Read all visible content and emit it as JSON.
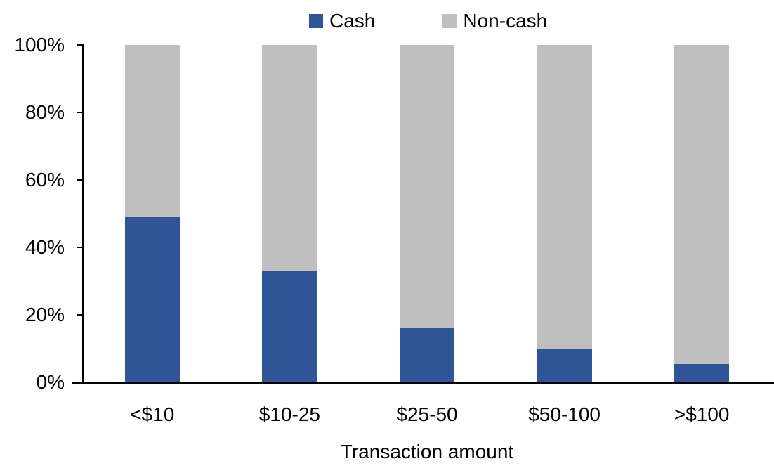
{
  "chart_data": {
    "type": "bar",
    "stacked": true,
    "percent_stacked": true,
    "title": "",
    "xlabel": "Transaction amount",
    "ylabel": "",
    "categories": [
      "<$10",
      "$10-25",
      "$25-50",
      "$50-100",
      ">$100"
    ],
    "series": [
      {
        "name": "Cash",
        "color": "#2F5597",
        "values": [
          49,
          33,
          16,
          10,
          5.5
        ]
      },
      {
        "name": "Non-cash",
        "color": "#BFBFBF",
        "values": [
          51,
          67,
          84,
          90,
          94.5
        ]
      }
    ],
    "ylim": [
      0,
      100
    ],
    "yticks": [
      0,
      20,
      40,
      60,
      80,
      100
    ],
    "ytick_labels": [
      "0%",
      "20%",
      "40%",
      "60%",
      "80%",
      "100%"
    ],
    "grid": false,
    "legend_position": "top-center",
    "axis_color": "#000000",
    "background_color": "#FFFFFF"
  }
}
